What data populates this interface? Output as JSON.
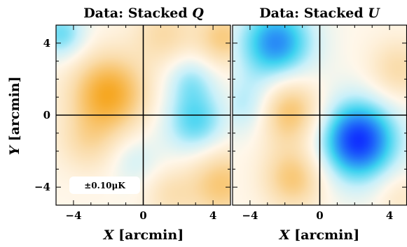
{
  "chart_data": [
    {
      "type": "heatmap",
      "title_prefix": "Data: Stacked",
      "title_var": "Q",
      "xlabel_var": "X",
      "xlabel_unit": "[arcmin]",
      "ylabel_var": "Y",
      "ylabel_unit": "[arcmin]",
      "xlim": [
        -5,
        5
      ],
      "ylim": [
        -5,
        5
      ],
      "xticks": [
        -4,
        0,
        4
      ],
      "yticks": [
        4,
        0,
        -4
      ],
      "xtick_labels": [
        "−4",
        "0",
        "4"
      ],
      "ytick_labels": [
        "4",
        "0",
        "−4"
      ],
      "scale_label": "±0.10μK",
      "colormap": {
        "negative": "#1030ff",
        "mid": "#fff7ea",
        "positive": "#f59a00"
      },
      "blobs": [
        {
          "x": -2.0,
          "y": 1.2,
          "amp": 0.85,
          "sigma": 1.5
        },
        {
          "x": -3.2,
          "y": -1.5,
          "amp": 0.3,
          "sigma": 1.2
        },
        {
          "x": 4.5,
          "y": -3.8,
          "amp": 0.55,
          "sigma": 1.4
        },
        {
          "x": 4.6,
          "y": 4.3,
          "amp": 0.5,
          "sigma": 1.1
        },
        {
          "x": 1.2,
          "y": 4.5,
          "amp": 0.35,
          "sigma": 1.2
        },
        {
          "x": -4.7,
          "y": 4.5,
          "amp": -0.45,
          "sigma": 1.0
        },
        {
          "x": 3.0,
          "y": -0.4,
          "amp": -0.5,
          "sigma": 1.3
        },
        {
          "x": 2.7,
          "y": 2.0,
          "amp": -0.3,
          "sigma": 1.0
        },
        {
          "x": -0.5,
          "y": -2.5,
          "amp": -0.2,
          "sigma": 1.0
        },
        {
          "x": 1.5,
          "y": -4.4,
          "amp": 0.25,
          "sigma": 1.0
        }
      ]
    },
    {
      "type": "heatmap",
      "title_prefix": "Data: Stacked",
      "title_var": "U",
      "xlabel_var": "X",
      "xlabel_unit": "[arcmin]",
      "xlim": [
        -5,
        5
      ],
      "ylim": [
        -5,
        5
      ],
      "xticks": [
        -4,
        0,
        4
      ],
      "xtick_labels": [
        "−4",
        "0",
        "4"
      ],
      "colormap": {
        "negative": "#1030ff",
        "mid": "#fff7ea",
        "positive": "#f59a00"
      },
      "blobs": [
        {
          "x": 2.2,
          "y": -1.4,
          "amp": -1.0,
          "sigma": 1.6
        },
        {
          "x": -2.5,
          "y": 4.0,
          "amp": -0.75,
          "sigma": 1.5
        },
        {
          "x": -4.0,
          "y": 0.5,
          "amp": -0.35,
          "sigma": 1.2
        },
        {
          "x": -1.8,
          "y": 0.2,
          "amp": 0.65,
          "sigma": 1.3
        },
        {
          "x": -1.5,
          "y": -3.5,
          "amp": 0.55,
          "sigma": 1.2
        },
        {
          "x": 4.5,
          "y": 2.5,
          "amp": 0.35,
          "sigma": 1.2
        },
        {
          "x": 4.6,
          "y": -4.5,
          "amp": 0.2,
          "sigma": 1.0
        }
      ]
    }
  ]
}
